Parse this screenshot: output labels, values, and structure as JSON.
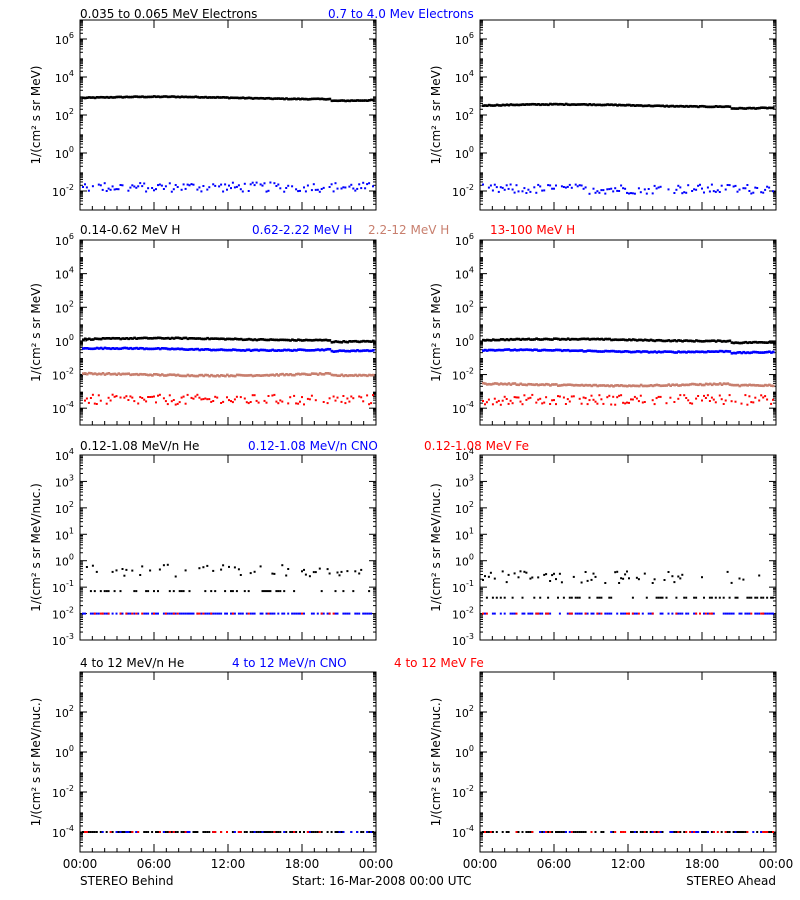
{
  "colors": {
    "black": "#000000",
    "blue": "#0000ff",
    "tan": "#c87f6e",
    "red": "#ff0000"
  },
  "footer": {
    "left": "STEREO Behind",
    "center": "Start: 16-Mar-2008 00:00 UTC",
    "right": "STEREO Ahead"
  },
  "x_ticks": [
    "00:00",
    "06:00",
    "12:00",
    "18:00",
    "00:00"
  ],
  "chart_data": [
    {
      "id": "electrons",
      "type": "scatter",
      "scale": "log",
      "ylabel": "1/(cm² s sr MeV)",
      "ylim_exp": [
        -3,
        7
      ],
      "yticks": [
        {
          "exp": 6,
          "label_base": "10",
          "label_sup": "6"
        },
        {
          "exp": 4,
          "label_base": "10",
          "label_sup": "4"
        },
        {
          "exp": 2,
          "label_base": "10",
          "label_sup": "2"
        },
        {
          "exp": 0,
          "label_base": "10",
          "label_sup": "0"
        },
        {
          "exp": -2,
          "label_base": "10",
          "label_sup": "-2"
        }
      ],
      "series": [
        {
          "name": "0.035 to 0.065 MeV Electrons",
          "color": "black",
          "behind_log": 2.9,
          "ahead_log": 2.5,
          "scatter": 0.04,
          "style": "line"
        },
        {
          "name": "0.7 to 4.0 Mev Electrons",
          "color": "blue",
          "behind_log": -1.8,
          "ahead_log": -1.9,
          "scatter": 0.25,
          "style": "dots"
        }
      ]
    },
    {
      "id": "protons",
      "type": "scatter",
      "scale": "log",
      "ylabel": "1/(cm² s sr MeV)",
      "ylim_exp": [
        -5,
        6
      ],
      "yticks": [
        {
          "exp": 6,
          "label_base": "10",
          "label_sup": "6"
        },
        {
          "exp": 4,
          "label_base": "10",
          "label_sup": "4"
        },
        {
          "exp": 2,
          "label_base": "10",
          "label_sup": "2"
        },
        {
          "exp": 0,
          "label_base": "10",
          "label_sup": "0"
        },
        {
          "exp": -2,
          "label_base": "10",
          "label_sup": "-2"
        },
        {
          "exp": -4,
          "label_base": "10",
          "label_sup": "-4"
        }
      ],
      "series": [
        {
          "name": "0.14-0.62 MeV H",
          "color": "black",
          "behind_log": 0.1,
          "ahead_log": 0.05,
          "scatter": 0.06,
          "style": "line"
        },
        {
          "name": "0.62-2.22 MeV H",
          "color": "blue",
          "behind_log": -0.5,
          "ahead_log": -0.6,
          "scatter": 0.06,
          "style": "line"
        },
        {
          "name": "2.2-12 MeV H",
          "color": "tan",
          "behind_log": -2.0,
          "ahead_log": -2.6,
          "scatter": 0.08,
          "style": "line"
        },
        {
          "name": "13-100 MeV H",
          "color": "red",
          "behind_log": -3.5,
          "ahead_log": -3.5,
          "scatter": 0.3,
          "style": "dots"
        }
      ]
    },
    {
      "id": "heavy-low",
      "type": "scatter",
      "scale": "log",
      "ylabel": "1/(cm² s sr MeV/nuc.)",
      "ylim_exp": [
        -3,
        4
      ],
      "yticks": [
        {
          "exp": 4,
          "label_base": "10",
          "label_sup": "4"
        },
        {
          "exp": 3,
          "label_base": "10",
          "label_sup": "3"
        },
        {
          "exp": 2,
          "label_base": "10",
          "label_sup": "2"
        },
        {
          "exp": 1,
          "label_base": "10",
          "label_sup": "1"
        },
        {
          "exp": 0,
          "label_base": "10",
          "label_sup": "0"
        },
        {
          "exp": -1,
          "label_base": "10",
          "label_sup": "-1"
        },
        {
          "exp": -2,
          "label_base": "10",
          "label_sup": "-2"
        },
        {
          "exp": -3,
          "label_base": "10",
          "label_sup": "-3"
        }
      ],
      "series": [
        {
          "name": "0.12-1.08 MeV/n He",
          "color": "black",
          "behind_log": -0.85,
          "ahead_log": -1.1,
          "scatter": 0.35,
          "style": "sparse"
        },
        {
          "name": "0.12-1.08 MeV/n CNO",
          "color": "blue",
          "behind_log": -2.0,
          "ahead_log": -2.0,
          "scatter": 0.0,
          "style": "floor"
        },
        {
          "name": "0.12-1.08 MeV Fe",
          "color": "red",
          "behind_log": -2.0,
          "ahead_log": -2.0,
          "scatter": 0.0,
          "style": "rare"
        }
      ]
    },
    {
      "id": "heavy-high",
      "type": "scatter",
      "scale": "log",
      "ylabel": "1/(cm² s sr MeV/nuc.)",
      "ylim_exp": [
        -5,
        4
      ],
      "yticks": [
        {
          "exp": 2,
          "label_base": "10",
          "label_sup": "2"
        },
        {
          "exp": 0,
          "label_base": "10",
          "label_sup": "0"
        },
        {
          "exp": -2,
          "label_base": "10",
          "label_sup": "-2"
        },
        {
          "exp": -4,
          "label_base": "10",
          "label_sup": "-4"
        }
      ],
      "series": [
        {
          "name": "4 to 12 MeV/n He",
          "color": "black",
          "behind_log": -4.0,
          "ahead_log": -4.0,
          "scatter": 0.0,
          "style": "floor"
        },
        {
          "name": "4 to 12 MeV/n CNO",
          "color": "blue",
          "behind_log": -4.0,
          "ahead_log": -4.0,
          "scatter": 0.0,
          "style": "rare"
        },
        {
          "name": "4 to 12 MeV Fe",
          "color": "red",
          "behind_log": -4.0,
          "ahead_log": -4.0,
          "scatter": 0.0,
          "style": "rare"
        }
      ]
    }
  ]
}
